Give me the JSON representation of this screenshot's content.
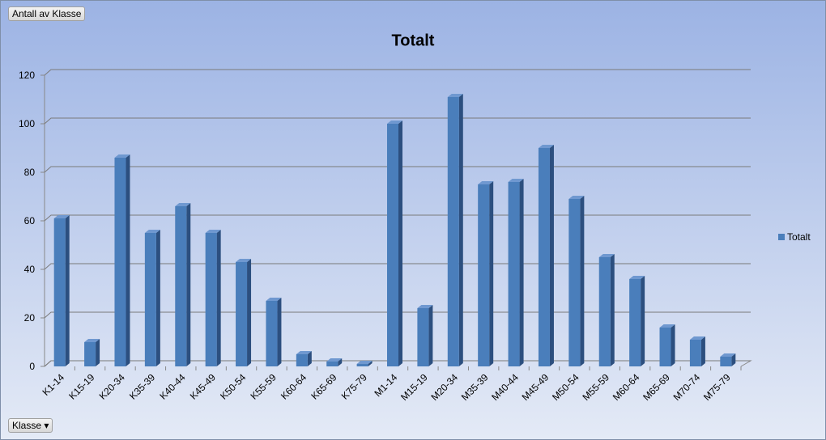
{
  "chart_data": {
    "type": "bar3d",
    "title": "Totalt",
    "field_buttons": {
      "value_field": "Antall av Klasse",
      "axis_field": "Klasse"
    },
    "categories": [
      "K1-14",
      "K15-19",
      "K20-34",
      "K35-39",
      "K40-44",
      "K45-49",
      "K50-54",
      "K55-59",
      "K60-64",
      "K65-69",
      "K75-79",
      "M1-14",
      "M15-19",
      "M20-34",
      "M35-39",
      "M40-44",
      "M45-49",
      "M50-54",
      "M55-59",
      "M60-64",
      "M65-69",
      "M70-74",
      "M75-79"
    ],
    "series": [
      {
        "name": "Totalt",
        "color": "#4a7ebb",
        "values": [
          61,
          10,
          86,
          55,
          66,
          55,
          43,
          27,
          5,
          2,
          1,
          100,
          24,
          111,
          75,
          76,
          90,
          69,
          45,
          36,
          16,
          11,
          4
        ]
      }
    ],
    "ylim": [
      0,
      120
    ],
    "yticks": [
      0,
      20,
      40,
      60,
      80,
      100,
      120
    ],
    "grid": true,
    "legend": "right"
  }
}
